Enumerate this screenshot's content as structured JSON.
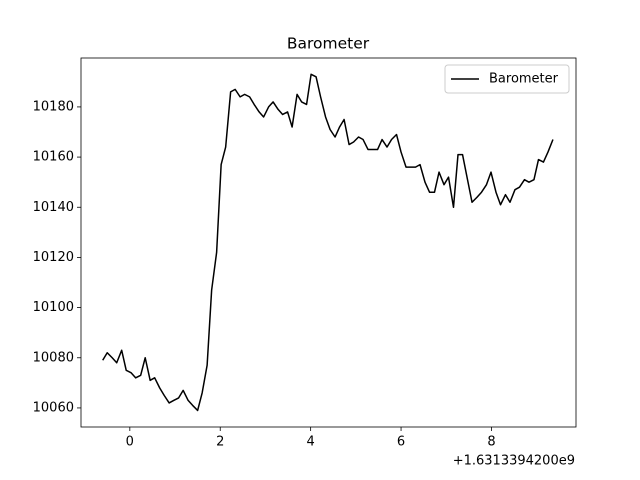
{
  "chart_data": {
    "type": "line",
    "title": "Barometer",
    "x_offset": "+1.6313394200e9",
    "x": [
      -0.6,
      -0.5,
      -0.39,
      -0.29,
      -0.18,
      -0.08,
      0.03,
      0.13,
      0.24,
      0.34,
      0.45,
      0.55,
      0.66,
      0.76,
      0.87,
      0.97,
      1.08,
      1.18,
      1.29,
      1.39,
      1.5,
      1.6,
      1.71,
      1.81,
      1.92,
      2.02,
      2.12,
      2.23,
      2.33,
      2.44,
      2.54,
      2.65,
      2.75,
      2.86,
      2.96,
      3.07,
      3.17,
      3.28,
      3.38,
      3.49,
      3.59,
      3.7,
      3.8,
      3.91,
      4.01,
      4.12,
      4.22,
      4.33,
      4.43,
      4.54,
      4.64,
      4.74,
      4.85,
      4.95,
      5.06,
      5.16,
      5.27,
      5.37,
      5.48,
      5.58,
      5.69,
      5.79,
      5.9,
      6.0,
      6.11,
      6.21,
      6.32,
      6.42,
      6.53,
      6.63,
      6.74,
      6.84,
      6.95,
      7.05,
      7.16,
      7.26,
      7.36,
      7.47,
      7.57,
      7.68,
      7.78,
      7.89,
      7.99,
      8.1,
      8.2,
      8.31,
      8.41,
      8.52,
      8.62,
      8.73,
      8.83,
      8.94,
      9.04,
      9.15,
      9.25,
      9.36
    ],
    "series": [
      {
        "name": "Barometer",
        "color": "#000000",
        "values": [
          10079,
          10082,
          10080,
          10078,
          10083,
          10075,
          10074,
          10072,
          10073,
          10080,
          10071,
          10072,
          10068,
          10065,
          10062,
          10063,
          10064,
          10067,
          10063,
          10061,
          10059,
          10066,
          10077,
          10107,
          10122,
          10157,
          10164,
          10186,
          10187,
          10184,
          10185,
          10184,
          10181,
          10178,
          10176,
          10180,
          10182,
          10179,
          10177,
          10178,
          10172,
          10185,
          10182,
          10181,
          10193,
          10192,
          10184,
          10176,
          10171,
          10168,
          10172,
          10175,
          10165,
          10166,
          10168,
          10167,
          10163,
          10163,
          10163,
          10167,
          10164,
          10167,
          10169,
          10162,
          10156,
          10156,
          10156,
          10157,
          10150,
          10146,
          10146,
          10154,
          10149,
          10152,
          10140,
          10161,
          10161,
          10151,
          10142,
          10144,
          10146,
          10149,
          10154,
          10146,
          10141,
          10145,
          10142,
          10147,
          10148,
          10151,
          10150,
          10151,
          10159,
          10158,
          10162,
          10167
        ]
      }
    ],
    "xlim": [
      -1.08,
      9.87
    ],
    "xticks": [
      0,
      2,
      4,
      6,
      8
    ],
    "ylim": [
      10052.4,
      10199.5
    ],
    "yticks": [
      10060,
      10080,
      10100,
      10120,
      10140,
      10160,
      10180
    ],
    "legend": "upper right"
  }
}
